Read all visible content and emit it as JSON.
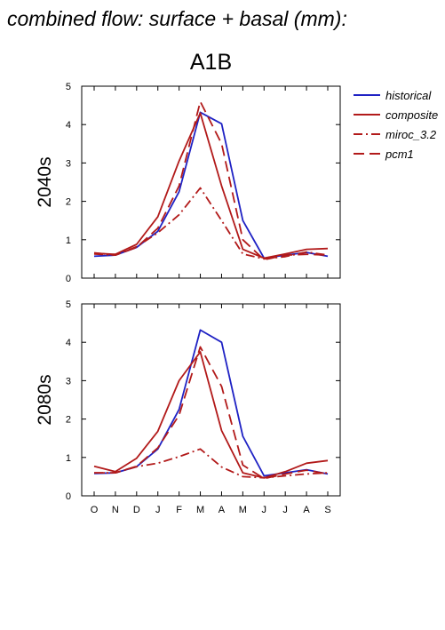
{
  "figure_title": "combined flow: surface + basal (mm):",
  "panel_title": "A1B",
  "legend": [
    {
      "label": "historical",
      "color": "#1f22c4",
      "dash": "none"
    },
    {
      "label": "composite",
      "color": "#b21a1a",
      "dash": "none"
    },
    {
      "label": "miroc_3.2",
      "color": "#b21a1a",
      "dash": "10,4,2,4"
    },
    {
      "label": "pcm1",
      "color": "#b21a1a",
      "dash": "12,6"
    }
  ],
  "chart_data": [
    {
      "type": "line",
      "ylabel": "2040s",
      "categories": [
        "O",
        "N",
        "D",
        "J",
        "F",
        "M",
        "A",
        "M",
        "J",
        "J",
        "A",
        "S"
      ],
      "ylim": [
        0,
        5
      ],
      "yticks": [
        0,
        1,
        2,
        3,
        4,
        5
      ],
      "series": [
        {
          "name": "historical",
          "values": [
            0.57,
            0.6,
            0.8,
            1.22,
            2.25,
            4.32,
            4.02,
            1.5,
            0.52,
            0.6,
            0.67,
            0.57
          ]
        },
        {
          "name": "composite",
          "values": [
            0.65,
            0.62,
            0.88,
            1.6,
            3.05,
            4.3,
            2.4,
            0.75,
            0.52,
            0.63,
            0.75,
            0.77
          ]
        },
        {
          "name": "miroc_3.2",
          "values": [
            0.63,
            0.6,
            0.82,
            1.18,
            1.65,
            2.35,
            1.5,
            0.63,
            0.5,
            0.56,
            0.68,
            0.6
          ]
        },
        {
          "name": "pcm1",
          "values": [
            0.66,
            0.6,
            0.8,
            1.3,
            2.4,
            4.6,
            3.5,
            1.0,
            0.48,
            0.6,
            0.62,
            0.6
          ]
        }
      ]
    },
    {
      "type": "line",
      "ylabel": "2080s",
      "categories": [
        "O",
        "N",
        "D",
        "J",
        "F",
        "M",
        "A",
        "M",
        "J",
        "J",
        "A",
        "S"
      ],
      "ylim": [
        0,
        5
      ],
      "yticks": [
        0,
        1,
        2,
        3,
        4,
        5
      ],
      "series": [
        {
          "name": "historical",
          "values": [
            0.58,
            0.6,
            0.76,
            1.22,
            2.25,
            4.32,
            4.0,
            1.55,
            0.52,
            0.6,
            0.68,
            0.57
          ]
        },
        {
          "name": "composite",
          "values": [
            0.77,
            0.63,
            0.98,
            1.68,
            3.0,
            3.75,
            1.7,
            0.6,
            0.47,
            0.63,
            0.85,
            0.92
          ]
        },
        {
          "name": "miroc_3.2",
          "values": [
            0.6,
            0.6,
            0.76,
            0.85,
            1.02,
            1.22,
            0.75,
            0.5,
            0.47,
            0.52,
            0.57,
            0.6
          ]
        },
        {
          "name": "pcm1",
          "values": [
            0.6,
            0.6,
            0.77,
            1.25,
            2.1,
            3.88,
            2.85,
            0.8,
            0.45,
            0.57,
            0.67,
            0.57
          ]
        }
      ]
    }
  ]
}
